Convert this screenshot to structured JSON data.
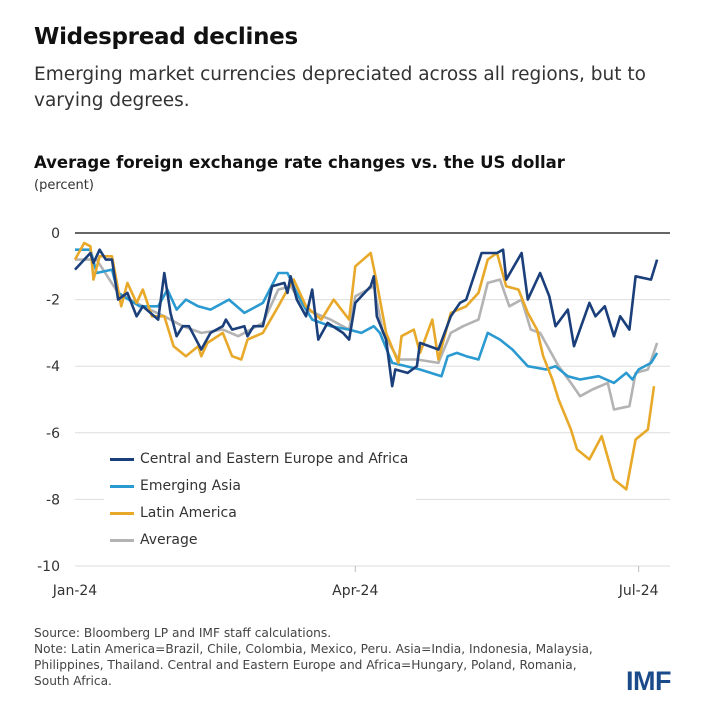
{
  "header": {
    "title": "Widespread declines",
    "subtitle": "Emerging market currencies depreciated across all regions, but to varying degrees."
  },
  "footer": {
    "source": "Source: Bloomberg LP and IMF staff calculations.",
    "note": "Note: Latin America=Brazil, Chile, Colombia, Mexico, Peru. Asia=India, Indonesia, Malaysia, Philippines, Thailand. Central and Eastern Europe and Africa=Hungary, Poland, Romania, South Africa.",
    "logo": "IMF"
  },
  "chart_data": {
    "type": "line",
    "title": "Average foreign exchange rate changes vs. the US dollar",
    "ylabel": "(percent)",
    "xlabel": "",
    "ylim": [
      -10,
      0
    ],
    "yticks": [
      "0",
      "-2",
      "-4",
      "-6",
      "-8",
      "-10"
    ],
    "ytick_values": [
      0,
      -2,
      -4,
      -6,
      -8,
      -10
    ],
    "xticks": [
      "Jan-24",
      "Apr-24",
      "Jul-24"
    ],
    "xtick_dates": [
      "2024-01-01",
      "2024-04-01",
      "2024-07-02"
    ],
    "grid": "horizontal",
    "legend": "bottom-left",
    "series": [
      {
        "name": "Central and Eastern Europe and Africa",
        "color": "#1a3f7a",
        "points": [
          [
            "2024-01-01",
            -1.1
          ],
          [
            "2024-01-06",
            -0.6
          ],
          [
            "2024-01-07",
            -0.9
          ],
          [
            "2024-01-09",
            -0.5
          ],
          [
            "2024-01-11",
            -0.8
          ],
          [
            "2024-01-13",
            -0.8
          ],
          [
            "2024-01-15",
            -2.0
          ],
          [
            "2024-01-18",
            -1.8
          ],
          [
            "2024-01-21",
            -2.5
          ],
          [
            "2024-01-23",
            -2.2
          ],
          [
            "2024-01-28",
            -2.6
          ],
          [
            "2024-01-30",
            -1.2
          ],
          [
            "2024-02-01",
            -2.4
          ],
          [
            "2024-02-03",
            -3.1
          ],
          [
            "2024-02-05",
            -2.8
          ],
          [
            "2024-02-07",
            -2.8
          ],
          [
            "2024-02-11",
            -3.5
          ],
          [
            "2024-02-14",
            -3.0
          ],
          [
            "2024-02-18",
            -2.8
          ],
          [
            "2024-02-19",
            -2.6
          ],
          [
            "2024-02-21",
            -2.9
          ],
          [
            "2024-02-25",
            -2.8
          ],
          [
            "2024-02-26",
            -3.1
          ],
          [
            "2024-02-28",
            -2.8
          ],
          [
            "2024-03-02",
            -2.8
          ],
          [
            "2024-03-05",
            -1.6
          ],
          [
            "2024-03-09",
            -1.5
          ],
          [
            "2024-03-10",
            -1.8
          ],
          [
            "2024-03-11",
            -1.3
          ],
          [
            "2024-03-13",
            -2.0
          ],
          [
            "2024-03-16",
            -2.5
          ],
          [
            "2024-03-18",
            -1.7
          ],
          [
            "2024-03-20",
            -3.2
          ],
          [
            "2024-03-23",
            -2.7
          ],
          [
            "2024-03-28",
            -3.0
          ],
          [
            "2024-03-30",
            -3.2
          ],
          [
            "2024-04-01",
            -2.1
          ],
          [
            "2024-04-06",
            -1.6
          ],
          [
            "2024-04-07",
            -1.3
          ],
          [
            "2024-04-08",
            -2.5
          ],
          [
            "2024-04-11",
            -3.2
          ],
          [
            "2024-04-13",
            -4.6
          ],
          [
            "2024-04-14",
            -4.1
          ],
          [
            "2024-04-18",
            -4.2
          ],
          [
            "2024-04-21",
            -4.0
          ],
          [
            "2024-04-22",
            -3.3
          ],
          [
            "2024-04-28",
            -3.5
          ],
          [
            "2024-05-02",
            -2.5
          ],
          [
            "2024-05-05",
            -2.1
          ],
          [
            "2024-05-07",
            -2.0
          ],
          [
            "2024-05-12",
            -0.6
          ],
          [
            "2024-05-17",
            -0.6
          ],
          [
            "2024-05-19",
            -0.5
          ],
          [
            "2024-05-20",
            -1.4
          ],
          [
            "2024-05-25",
            -0.6
          ],
          [
            "2024-05-27",
            -2.0
          ],
          [
            "2024-05-31",
            -1.2
          ],
          [
            "2024-06-03",
            -1.9
          ],
          [
            "2024-06-05",
            -2.8
          ],
          [
            "2024-06-09",
            -2.3
          ],
          [
            "2024-06-11",
            -3.4
          ],
          [
            "2024-06-16",
            -2.1
          ],
          [
            "2024-06-18",
            -2.5
          ],
          [
            "2024-06-21",
            -2.2
          ],
          [
            "2024-06-24",
            -3.1
          ],
          [
            "2024-06-26",
            -2.5
          ],
          [
            "2024-06-29",
            -2.9
          ],
          [
            "2024-07-01",
            -1.3
          ],
          [
            "2024-07-06",
            -1.4
          ],
          [
            "2024-07-08",
            -0.8
          ]
        ]
      },
      {
        "name": "Emerging Asia",
        "color": "#2a9ad0",
        "points": [
          [
            "2024-01-01",
            -0.5
          ],
          [
            "2024-01-06",
            -0.5
          ],
          [
            "2024-01-08",
            -1.2
          ],
          [
            "2024-01-13",
            -1.1
          ],
          [
            "2024-01-15",
            -1.8
          ],
          [
            "2024-01-22",
            -2.2
          ],
          [
            "2024-01-28",
            -2.2
          ],
          [
            "2024-01-31",
            -1.7
          ],
          [
            "2024-02-03",
            -2.3
          ],
          [
            "2024-02-06",
            -2.0
          ],
          [
            "2024-02-10",
            -2.2
          ],
          [
            "2024-02-14",
            -2.3
          ],
          [
            "2024-02-20",
            -2.0
          ],
          [
            "2024-02-25",
            -2.4
          ],
          [
            "2024-03-02",
            -2.1
          ],
          [
            "2024-03-07",
            -1.2
          ],
          [
            "2024-03-10",
            -1.2
          ],
          [
            "2024-03-13",
            -1.8
          ],
          [
            "2024-03-16",
            -2.3
          ],
          [
            "2024-03-18",
            -2.6
          ],
          [
            "2024-03-24",
            -2.8
          ],
          [
            "2024-03-30",
            -2.9
          ],
          [
            "2024-04-03",
            -3.0
          ],
          [
            "2024-04-07",
            -2.8
          ],
          [
            "2024-04-09",
            -3.0
          ],
          [
            "2024-04-13",
            -3.9
          ],
          [
            "2024-04-22",
            -4.1
          ],
          [
            "2024-04-29",
            -4.3
          ],
          [
            "2024-05-01",
            -3.7
          ],
          [
            "2024-05-04",
            -3.6
          ],
          [
            "2024-05-07",
            -3.7
          ],
          [
            "2024-05-11",
            -3.8
          ],
          [
            "2024-05-14",
            -3.0
          ],
          [
            "2024-05-18",
            -3.2
          ],
          [
            "2024-05-22",
            -3.5
          ],
          [
            "2024-05-27",
            -4.0
          ],
          [
            "2024-06-02",
            -4.1
          ],
          [
            "2024-06-05",
            -4.0
          ],
          [
            "2024-06-09",
            -4.3
          ],
          [
            "2024-06-13",
            -4.4
          ],
          [
            "2024-06-19",
            -4.3
          ],
          [
            "2024-06-24",
            -4.5
          ],
          [
            "2024-06-28",
            -4.2
          ],
          [
            "2024-06-30",
            -4.4
          ],
          [
            "2024-07-02",
            -4.1
          ],
          [
            "2024-07-06",
            -3.9
          ],
          [
            "2024-07-08",
            -3.6
          ]
        ]
      },
      {
        "name": "Latin America",
        "color": "#e8a92a",
        "points": [
          [
            "2024-01-01",
            -0.8
          ],
          [
            "2024-01-04",
            -0.3
          ],
          [
            "2024-01-06",
            -0.4
          ],
          [
            "2024-01-07",
            -1.4
          ],
          [
            "2024-01-09",
            -0.7
          ],
          [
            "2024-01-13",
            -0.7
          ],
          [
            "2024-01-16",
            -2.2
          ],
          [
            "2024-01-18",
            -1.5
          ],
          [
            "2024-01-21",
            -2.1
          ],
          [
            "2024-01-23",
            -1.7
          ],
          [
            "2024-01-26",
            -2.5
          ],
          [
            "2024-01-30",
            -2.5
          ],
          [
            "2024-02-02",
            -3.4
          ],
          [
            "2024-02-06",
            -3.7
          ],
          [
            "2024-02-10",
            -3.4
          ],
          [
            "2024-02-11",
            -3.7
          ],
          [
            "2024-02-13",
            -3.3
          ],
          [
            "2024-02-18",
            -3.0
          ],
          [
            "2024-02-21",
            -3.7
          ],
          [
            "2024-02-24",
            -3.8
          ],
          [
            "2024-02-26",
            -3.2
          ],
          [
            "2024-03-02",
            -3.0
          ],
          [
            "2024-03-07",
            -2.2
          ],
          [
            "2024-03-10",
            -1.7
          ],
          [
            "2024-03-12",
            -1.4
          ],
          [
            "2024-03-16",
            -2.2
          ],
          [
            "2024-03-21",
            -2.6
          ],
          [
            "2024-03-25",
            -2.0
          ],
          [
            "2024-03-30",
            -2.6
          ],
          [
            "2024-04-01",
            -1.0
          ],
          [
            "2024-04-06",
            -0.6
          ],
          [
            "2024-04-08",
            -1.5
          ],
          [
            "2024-04-11",
            -3.0
          ],
          [
            "2024-04-15",
            -3.9
          ],
          [
            "2024-04-16",
            -3.1
          ],
          [
            "2024-04-20",
            -2.9
          ],
          [
            "2024-04-22",
            -3.6
          ],
          [
            "2024-04-26",
            -2.6
          ],
          [
            "2024-04-28",
            -3.8
          ],
          [
            "2024-05-02",
            -2.4
          ],
          [
            "2024-05-07",
            -2.2
          ],
          [
            "2024-05-11",
            -1.8
          ],
          [
            "2024-05-14",
            -0.8
          ],
          [
            "2024-05-17",
            -0.6
          ],
          [
            "2024-05-20",
            -1.6
          ],
          [
            "2024-05-24",
            -1.7
          ],
          [
            "2024-05-27",
            -2.4
          ],
          [
            "2024-05-30",
            -2.9
          ],
          [
            "2024-06-01",
            -3.7
          ],
          [
            "2024-06-04",
            -4.4
          ],
          [
            "2024-06-06",
            -5.0
          ],
          [
            "2024-06-10",
            -5.9
          ],
          [
            "2024-06-12",
            -6.5
          ],
          [
            "2024-06-16",
            -6.8
          ],
          [
            "2024-06-20",
            -6.1
          ],
          [
            "2024-06-24",
            -7.4
          ],
          [
            "2024-06-28",
            -7.7
          ],
          [
            "2024-07-01",
            -6.2
          ],
          [
            "2024-07-05",
            -5.9
          ],
          [
            "2024-07-07",
            -4.6
          ]
        ]
      },
      {
        "name": "Average",
        "color": "#b3b3b3",
        "points": [
          [
            "2024-01-01",
            -0.8
          ],
          [
            "2024-01-08",
            -0.8
          ],
          [
            "2024-01-15",
            -1.8
          ],
          [
            "2024-01-23",
            -2.2
          ],
          [
            "2024-01-30",
            -2.5
          ],
          [
            "2024-02-05",
            -2.8
          ],
          [
            "2024-02-11",
            -3.0
          ],
          [
            "2024-02-18",
            -2.9
          ],
          [
            "2024-02-23",
            -3.1
          ],
          [
            "2024-03-02",
            -2.7
          ],
          [
            "2024-03-07",
            -1.7
          ],
          [
            "2024-03-11",
            -1.6
          ],
          [
            "2024-03-16",
            -2.3
          ],
          [
            "2024-03-24",
            -2.6
          ],
          [
            "2024-03-30",
            -2.9
          ],
          [
            "2024-04-01",
            -1.9
          ],
          [
            "2024-04-07",
            -1.6
          ],
          [
            "2024-04-10",
            -3.0
          ],
          [
            "2024-04-15",
            -3.8
          ],
          [
            "2024-04-21",
            -3.8
          ],
          [
            "2024-04-28",
            -3.9
          ],
          [
            "2024-05-02",
            -3.0
          ],
          [
            "2024-05-06",
            -2.8
          ],
          [
            "2024-05-11",
            -2.6
          ],
          [
            "2024-05-14",
            -1.5
          ],
          [
            "2024-05-18",
            -1.4
          ],
          [
            "2024-05-21",
            -2.2
          ],
          [
            "2024-05-25",
            -2.0
          ],
          [
            "2024-05-28",
            -2.9
          ],
          [
            "2024-05-31",
            -3.0
          ],
          [
            "2024-06-03",
            -3.5
          ],
          [
            "2024-06-06",
            -4.0
          ],
          [
            "2024-06-10",
            -4.5
          ],
          [
            "2024-06-13",
            -4.9
          ],
          [
            "2024-06-17",
            -4.7
          ],
          [
            "2024-06-22",
            -4.5
          ],
          [
            "2024-06-24",
            -5.3
          ],
          [
            "2024-06-29",
            -5.2
          ],
          [
            "2024-07-01",
            -4.2
          ],
          [
            "2024-07-05",
            -4.1
          ],
          [
            "2024-07-08",
            -3.3
          ]
        ]
      }
    ]
  }
}
